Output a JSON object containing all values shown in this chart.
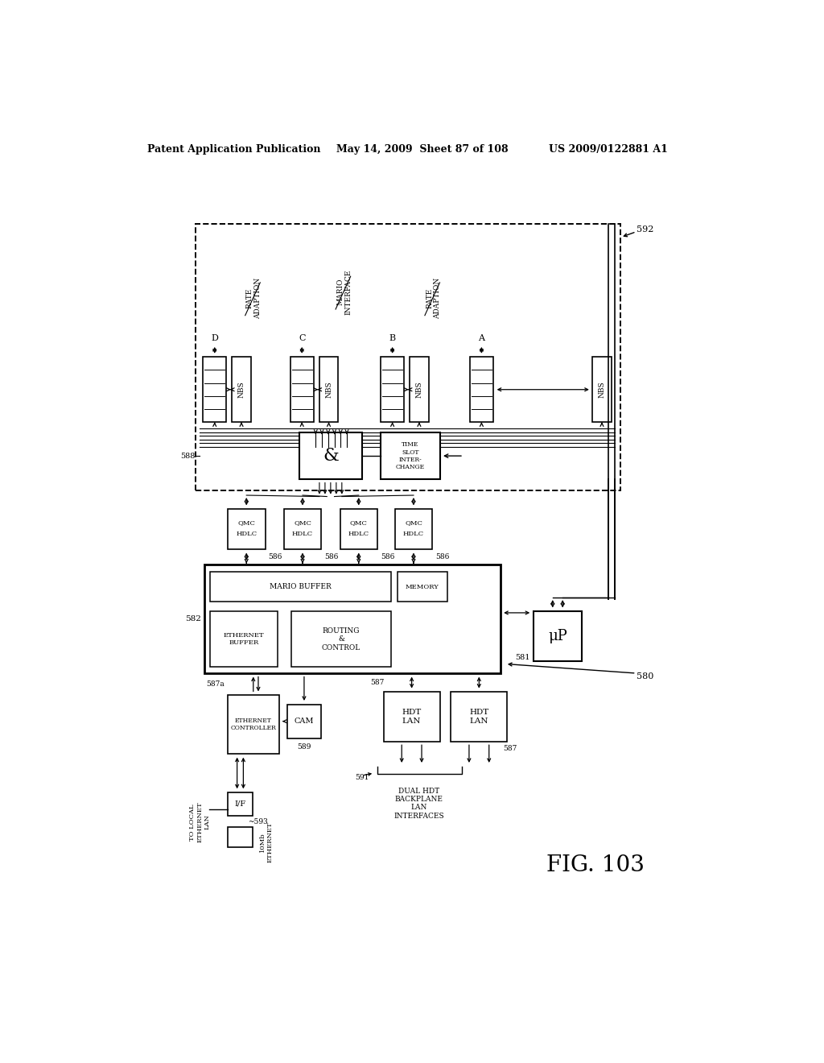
{
  "header_left": "Patent Application Publication",
  "header_mid": "May 14, 2009  Sheet 87 of 108",
  "header_right": "US 2009/0122881 A1",
  "fig_label": "FIG. 103",
  "bg": "#ffffff"
}
